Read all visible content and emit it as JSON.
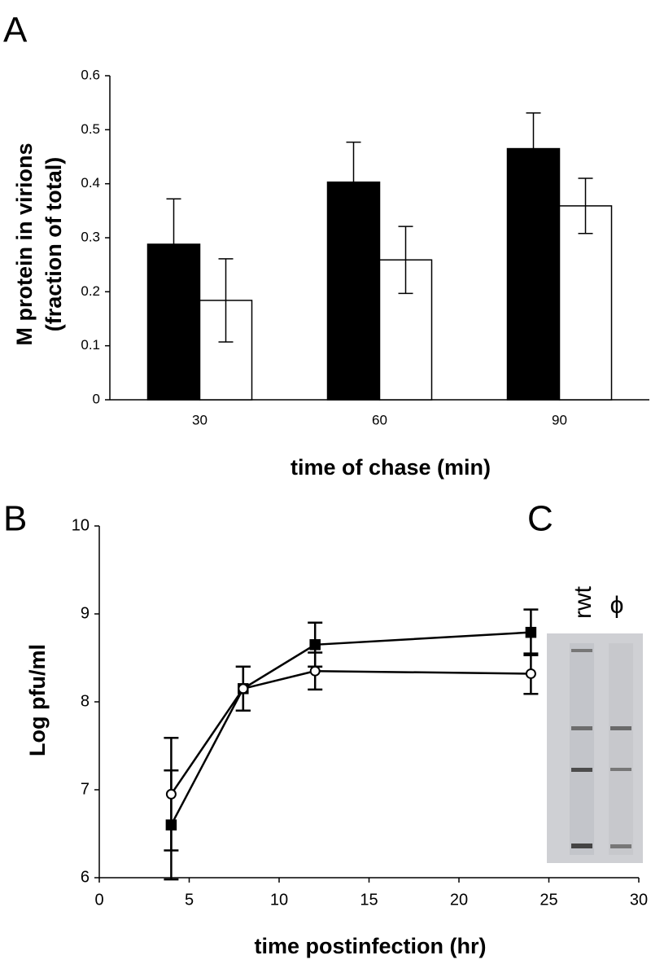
{
  "chart_data": [
    {
      "type": "bar",
      "panel_label": "A",
      "ylabel": [
        "M protein in virions",
        "(fraction of total)"
      ],
      "xlabel": "time of chase (min)",
      "categories": [
        "30",
        "60",
        "90"
      ],
      "series": [
        {
          "color": "#000000",
          "values": [
            0.288,
            0.403,
            0.465
          ],
          "errors": [
            0.084,
            0.074,
            0.066
          ]
        },
        {
          "color": "#ffffff",
          "values": [
            0.184,
            0.259,
            0.359
          ],
          "errors": [
            0.077,
            0.062,
            0.051
          ]
        }
      ],
      "ylim": [
        0,
        0.6
      ],
      "yticks": [
        0,
        0.1,
        0.2,
        0.3,
        0.4,
        0.5,
        0.6
      ]
    },
    {
      "type": "line",
      "panel_label": "B",
      "ylabel": "Log pfu/ml",
      "xlabel": "time postinfection (hr)",
      "x": [
        4,
        8,
        12,
        24
      ],
      "series": [
        {
          "color": "#000000",
          "marker": "square",
          "values": [
            6.6,
            8.15,
            8.65,
            8.79
          ],
          "errors": [
            0.62,
            0.25,
            0.25,
            0.26
          ]
        },
        {
          "color": "#ffffff",
          "marker": "circle",
          "values": [
            6.95,
            8.15,
            8.35,
            8.32
          ],
          "errors": [
            0.64,
            0.25,
            0.21,
            0.23
          ]
        }
      ],
      "xlim": [
        0,
        30
      ],
      "xticks": [
        0,
        5,
        10,
        15,
        20,
        25,
        30
      ],
      "ylim": [
        6,
        10
      ],
      "yticks": [
        6,
        7,
        8,
        9,
        10
      ]
    },
    {
      "type": "gel",
      "panel_label": "C",
      "lanes": [
        "rwt",
        "ϕ"
      ]
    }
  ]
}
